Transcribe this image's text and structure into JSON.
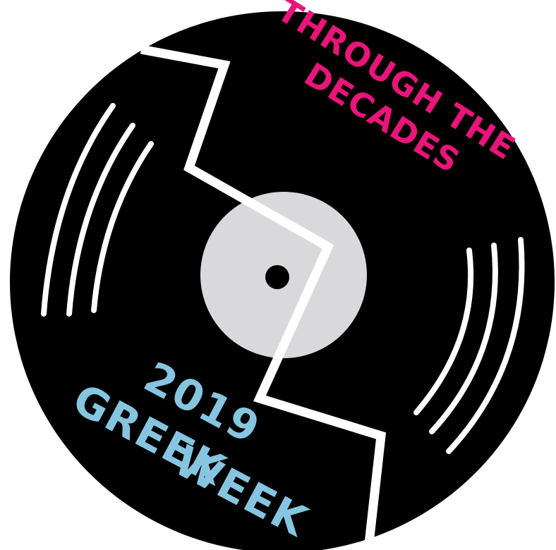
{
  "top_text": {
    "line1": "THROUGH THE",
    "line2": "DECADES"
  },
  "bottom_text": {
    "year": "2019",
    "line1": "GREEK",
    "line2": "WEEK"
  }
}
